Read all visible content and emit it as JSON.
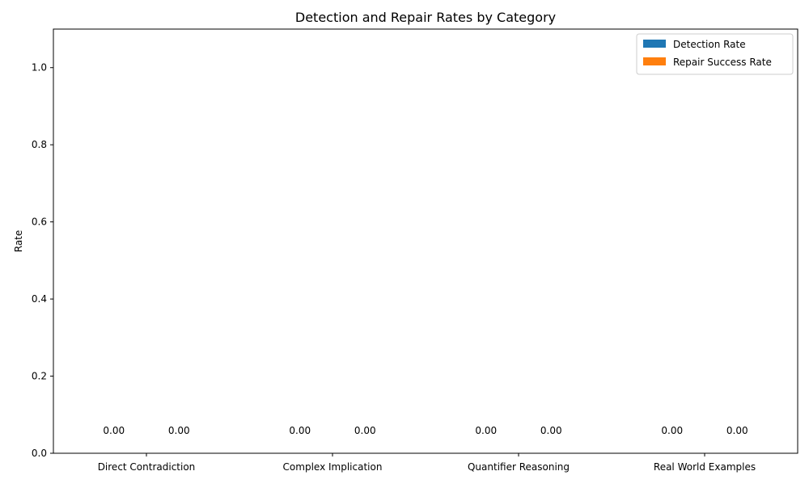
{
  "chart_data": {
    "type": "bar",
    "title": "Detection and Repair Rates by Category",
    "xlabel": "",
    "ylabel": "Rate",
    "categories": [
      "Direct Contradiction",
      "Complex Implication",
      "Quantifier Reasoning",
      "Real World Examples"
    ],
    "series": [
      {
        "name": "Detection Rate",
        "values": [
          0,
          0,
          0,
          0
        ],
        "color": "#1f77b4"
      },
      {
        "name": "Repair Success Rate",
        "values": [
          0,
          0,
          0,
          0
        ],
        "color": "#ff7f0e"
      }
    ],
    "data_labels": [
      [
        "0.00",
        "0.00",
        "0.00",
        "0.00"
      ],
      [
        "0.00",
        "0.00",
        "0.00",
        "0.00"
      ]
    ],
    "ylim": [
      0,
      1.1
    ],
    "yticks": [
      0.0,
      0.2,
      0.4,
      0.6,
      0.8,
      1.0
    ],
    "ytick_labels": [
      "0.0",
      "0.2",
      "0.4",
      "0.6",
      "0.8",
      "1.0"
    ],
    "grid": false,
    "legend_position": "top-right"
  }
}
